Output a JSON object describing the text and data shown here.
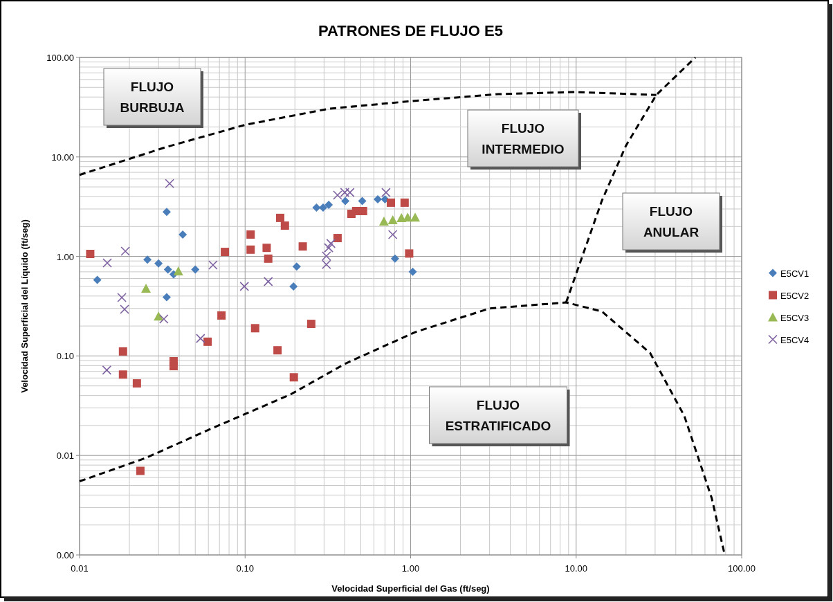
{
  "chart_data": {
    "type": "scatter",
    "title": "PATRONES DE FLUJO E5",
    "xlabel": "Velocidad Superficial del Gas (ft/seg)",
    "ylabel": "Velocidad Superficial del Líquido (ft/seg)",
    "log": "xy",
    "grid": true,
    "legend": "right",
    "xlim": [
      0.01,
      100
    ],
    "ylim": [
      0.001,
      100
    ],
    "xticks": [
      {
        "value": 0.01,
        "label": "0.01"
      },
      {
        "value": 0.1,
        "label": "0.10"
      },
      {
        "value": 1,
        "label": "1.00"
      },
      {
        "value": 10,
        "label": "10.00"
      },
      {
        "value": 100,
        "label": "100.00"
      }
    ],
    "yticks": [
      {
        "value": 0.001,
        "label": "0.00"
      },
      {
        "value": 0.01,
        "label": "0.01"
      },
      {
        "value": 0.1,
        "label": "0.10"
      },
      {
        "value": 1,
        "label": "1.00"
      },
      {
        "value": 10,
        "label": "10.00"
      },
      {
        "value": 100,
        "label": "100.00"
      }
    ],
    "series": [
      {
        "name": "E5CV1",
        "color": "#4a7ebb",
        "marker": "diamond",
        "x": [
          0.0128,
          0.0257,
          0.03,
          0.0336,
          0.0342,
          0.0336,
          0.037,
          0.042,
          0.05,
          0.196,
          0.205,
          0.27,
          0.296,
          0.32,
          0.403,
          0.51,
          0.633,
          0.7,
          0.805,
          1.03
        ],
        "values": [
          0.58,
          0.93,
          0.85,
          2.8,
          0.74,
          0.39,
          0.66,
          1.66,
          0.74,
          0.5,
          0.79,
          3.1,
          3.1,
          3.3,
          3.6,
          3.6,
          3.75,
          3.75,
          0.95,
          0.7
        ]
      },
      {
        "name": "E5CV2",
        "color": "#be4b48",
        "marker": "square",
        "x": [
          0.0116,
          0.0183,
          0.0183,
          0.0222,
          0.0233,
          0.037,
          0.037,
          0.0594,
          0.072,
          0.0755,
          0.108,
          0.108,
          0.115,
          0.135,
          0.138,
          0.157,
          0.163,
          0.174,
          0.197,
          0.223,
          0.251,
          0.362,
          0.439,
          0.469,
          0.516,
          0.76,
          0.92,
          0.98
        ],
        "values": [
          1.06,
          0.111,
          0.065,
          0.053,
          0.007,
          0.0885,
          0.079,
          0.139,
          0.255,
          1.11,
          1.66,
          1.17,
          0.19,
          1.22,
          0.95,
          0.114,
          2.44,
          2.04,
          0.061,
          1.26,
          0.21,
          1.53,
          2.68,
          2.86,
          2.86,
          3.47,
          3.47,
          1.07
        ]
      },
      {
        "name": "E5CV3",
        "color": "#98b954",
        "marker": "triangle",
        "x": [
          0.0252,
          0.03,
          0.0395,
          0.69,
          0.78,
          0.88,
          0.96,
          1.065
        ],
        "values": [
          0.475,
          0.25,
          0.71,
          2.25,
          2.32,
          2.44,
          2.47,
          2.47
        ]
      },
      {
        "name": "E5CV4",
        "color": "#7d60a0",
        "marker": "cross",
        "x": [
          0.0147,
          0.0189,
          0.018,
          0.0187,
          0.0146,
          0.0323,
          0.035,
          0.0538,
          0.064,
          0.099,
          0.138,
          0.31,
          0.31,
          0.32,
          0.33,
          0.362,
          0.4,
          0.43,
          0.71,
          0.78
        ],
        "values": [
          0.86,
          1.13,
          0.386,
          0.294,
          0.072,
          0.235,
          5.4,
          0.15,
          0.82,
          0.5,
          0.56,
          0.83,
          1.01,
          1.22,
          1.35,
          4.13,
          4.4,
          4.4,
          4.4,
          1.66
        ]
      },
      {
        "type": "line",
        "color": "#000000",
        "marker": "none",
        "line_style": "dashed",
        "x": [
          0.01,
          0.033,
          0.1,
          0.32,
          1.03,
          3.4,
          9.8,
          30.5
        ],
        "values": [
          6.6,
          12.5,
          21,
          30.5,
          36.5,
          42.8,
          44.9,
          42
        ]
      },
      {
        "type": "line",
        "color": "#000000",
        "marker": "none",
        "line_style": "dashed",
        "x": [
          8.7,
          14.3,
          20,
          30.5,
          52.5
        ],
        "values": [
          0.345,
          3.63,
          13,
          42,
          100
        ]
      },
      {
        "type": "line",
        "color": "#000000",
        "marker": "none",
        "line_style": "dashed",
        "x": [
          0.01,
          0.025,
          0.062,
          0.188,
          0.405,
          1.07,
          3,
          8.7,
          14.3,
          28,
          45,
          66,
          79
        ],
        "values": [
          0.0055,
          0.0094,
          0.0185,
          0.041,
          0.084,
          0.174,
          0.3,
          0.345,
          0.28,
          0.107,
          0.025,
          0.0037,
          0.001
        ]
      }
    ],
    "annotations": [
      "FLUJO\nBURBUJA",
      "FLUJO\nINTERMEDIO",
      "FLUJO\nANULAR",
      "FLUJO\nESTRATIFICADO"
    ]
  }
}
